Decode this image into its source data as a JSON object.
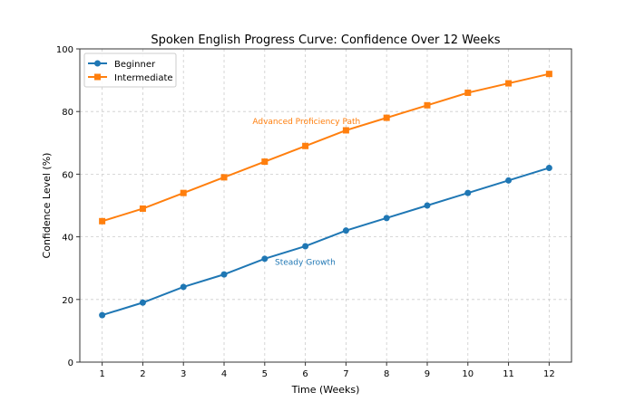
{
  "chart_data": {
    "type": "line",
    "title": "Spoken English Progress Curve: Confidence Over 12 Weeks",
    "xlabel": "Time (Weeks)",
    "ylabel": "Confidence Level (%)",
    "x": [
      1,
      2,
      3,
      4,
      5,
      6,
      7,
      8,
      9,
      10,
      11,
      12
    ],
    "xlim": [
      0.45,
      12.55
    ],
    "ylim": [
      0,
      100
    ],
    "yticks": [
      0,
      20,
      40,
      60,
      80,
      100
    ],
    "grid": true,
    "legend_position": "top-left",
    "series": [
      {
        "name": "Beginner",
        "color": "#1f77b4",
        "marker": "circle",
        "values": [
          15,
          19,
          24,
          28,
          33,
          37,
          42,
          46,
          50,
          54,
          58,
          62
        ]
      },
      {
        "name": "Intermediate",
        "color": "#ff7f0e",
        "marker": "square",
        "values": [
          45,
          49,
          54,
          59,
          64,
          69,
          74,
          78,
          82,
          86,
          89,
          92
        ]
      }
    ],
    "annotations": [
      {
        "text": "Advanced Proficiency Path",
        "x": 4.7,
        "y": 76,
        "color": "#ff7f0e"
      },
      {
        "text": "Steady Growth",
        "x": 5.25,
        "y": 31,
        "color": "#1f77b4"
      }
    ]
  }
}
